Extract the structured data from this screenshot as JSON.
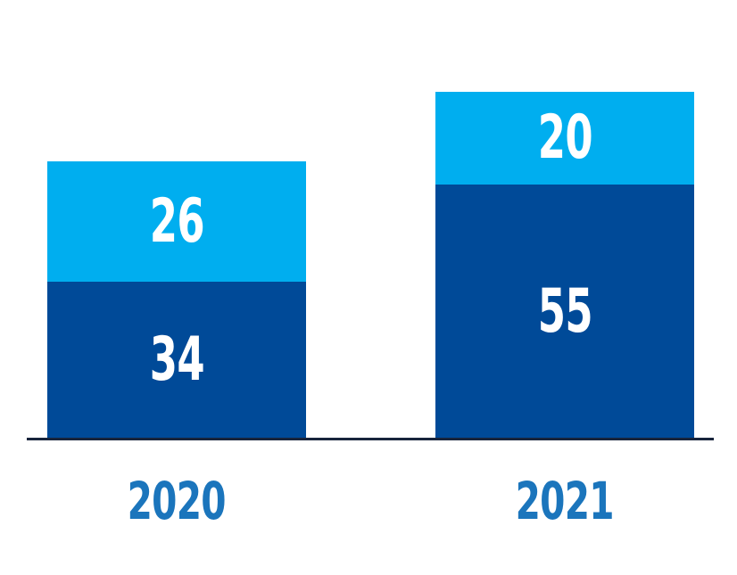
{
  "chart_data": {
    "type": "bar",
    "stacked": true,
    "title": "",
    "categories": [
      "2020",
      "2021"
    ],
    "series": [
      {
        "name": "bottom-segment",
        "color": "#004A98",
        "values": [
          34,
          55
        ]
      },
      {
        "name": "top-segment",
        "color": "#00AEEF",
        "values": [
          26,
          20
        ]
      }
    ],
    "totals": [
      60,
      75
    ],
    "value_labels_shown": true,
    "value_label_color": "#FFFFFF",
    "category_label_color": "#1B75BC",
    "axis_line_color": "#18243C",
    "background_color": "#FFFFFF",
    "legend_position": "none",
    "grid": false,
    "xlabel": "",
    "ylabel": "",
    "ylim": [
      0,
      75
    ]
  }
}
